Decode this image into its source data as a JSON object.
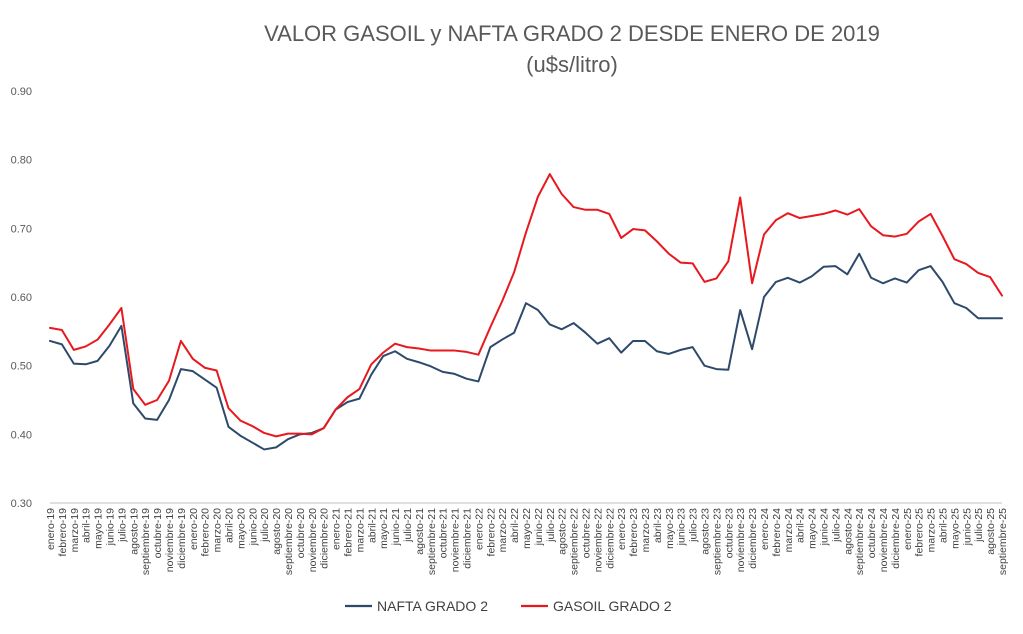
{
  "chart_data": {
    "type": "line",
    "title_line1": "VALOR GASOIL y NAFTA GRADO 2 DESDE ENERO DE 2019",
    "title_line2": "(u$s/litro)",
    "ylim": [
      0.3,
      0.9
    ],
    "yticks": [
      0.3,
      0.4,
      0.5,
      0.6,
      0.7,
      0.8,
      0.9
    ],
    "ytick_labels": [
      "0.30",
      "0.40",
      "0.50",
      "0.60",
      "0.70",
      "0.80",
      "0.90"
    ],
    "grid": false,
    "legend_position": "bottom",
    "categories": [
      "enero-19",
      "febrero-19",
      "marzo-19",
      "abril-19",
      "mayo-19",
      "junio-19",
      "julio-19",
      "agosto-19",
      "septiembre-19",
      "octubre-19",
      "noviembre-19",
      "diciembre-19",
      "enero-20",
      "febrero-20",
      "marzo-20",
      "abril-20",
      "mayo-20",
      "junio-20",
      "julio-20",
      "agosto-20",
      "septiembre-20",
      "octubre-20",
      "noviembre-20",
      "diciembre-20",
      "enero-21",
      "febrero-21",
      "marzo-21",
      "abril-21",
      "mayo-21",
      "junio-21",
      "julio-21",
      "agosto-21",
      "septiembre-21",
      "octubre-21",
      "noviembre-21",
      "diciembre-21",
      "enero-22",
      "febrero-22",
      "marzo-22",
      "abril-22",
      "mayo-22",
      "junio-22",
      "julio-22",
      "agosto-22",
      "septiembre-22",
      "octubre-22",
      "noviembre-22",
      "diciembre-22",
      "enero-23",
      "febrero-23",
      "marzo-23",
      "abril-23",
      "mayo-23",
      "junio-23",
      "julio-23",
      "agosto-23",
      "septiembre-23",
      "octubre-23",
      "noviembre-23",
      "diciembre-23",
      "enero-24",
      "febrero-24",
      "marzo-24",
      "abril-24",
      "mayo-24",
      "junio-24",
      "julio-24",
      "agosto-24",
      "septiembre-24",
      "octubre-24",
      "noviembre-24",
      "diciembre-24",
      "enero-25",
      "febrero-25",
      "marzo-25",
      "abril-25",
      "mayo-25",
      "junio-25",
      "julio-25",
      "agosto-25",
      "septiembre-25"
    ],
    "series": [
      {
        "name": "NAFTA GRADO 2",
        "color": "#2e4a6b",
        "values": [
          0.536,
          0.531,
          0.503,
          0.502,
          0.507,
          0.529,
          0.558,
          0.445,
          0.423,
          0.421,
          0.45,
          0.495,
          0.492,
          0.48,
          0.468,
          0.411,
          0.398,
          0.388,
          0.378,
          0.381,
          0.393,
          0.4,
          0.402,
          0.409,
          0.436,
          0.447,
          0.452,
          0.487,
          0.514,
          0.521,
          0.51,
          0.505,
          0.499,
          0.491,
          0.488,
          0.481,
          0.477,
          0.527,
          0.538,
          0.548,
          0.591,
          0.581,
          0.56,
          0.553,
          0.562,
          0.548,
          0.532,
          0.54,
          0.519,
          0.536,
          0.536,
          0.521,
          0.517,
          0.523,
          0.527,
          0.5,
          0.495,
          0.494,
          0.581,
          0.524,
          0.6,
          0.622,
          0.628,
          0.621,
          0.63,
          0.644,
          0.645,
          0.633,
          0.663,
          0.628,
          0.62,
          0.627,
          0.621,
          0.639,
          0.645,
          0.622,
          0.591,
          0.584,
          0.569,
          0.569,
          0.569
        ]
      },
      {
        "name": "GASOIL GRADO 2",
        "color": "#e8191e",
        "values": [
          0.555,
          0.552,
          0.523,
          0.528,
          0.538,
          0.56,
          0.584,
          0.466,
          0.443,
          0.45,
          0.478,
          0.536,
          0.51,
          0.497,
          0.493,
          0.438,
          0.42,
          0.412,
          0.402,
          0.397,
          0.401,
          0.401,
          0.4,
          0.409,
          0.436,
          0.454,
          0.466,
          0.502,
          0.519,
          0.532,
          0.527,
          0.525,
          0.522,
          0.522,
          0.522,
          0.52,
          0.516,
          0.556,
          0.594,
          0.636,
          0.694,
          0.746,
          0.779,
          0.75,
          0.731,
          0.727,
          0.727,
          0.721,
          0.686,
          0.699,
          0.697,
          0.681,
          0.663,
          0.65,
          0.649,
          0.622,
          0.627,
          0.652,
          0.745,
          0.62,
          0.691,
          0.712,
          0.722,
          0.715,
          0.718,
          0.721,
          0.726,
          0.72,
          0.728,
          0.703,
          0.69,
          0.688,
          0.692,
          0.71,
          0.721,
          0.689,
          0.655,
          0.648,
          0.635,
          0.629,
          0.602
        ]
      }
    ]
  }
}
